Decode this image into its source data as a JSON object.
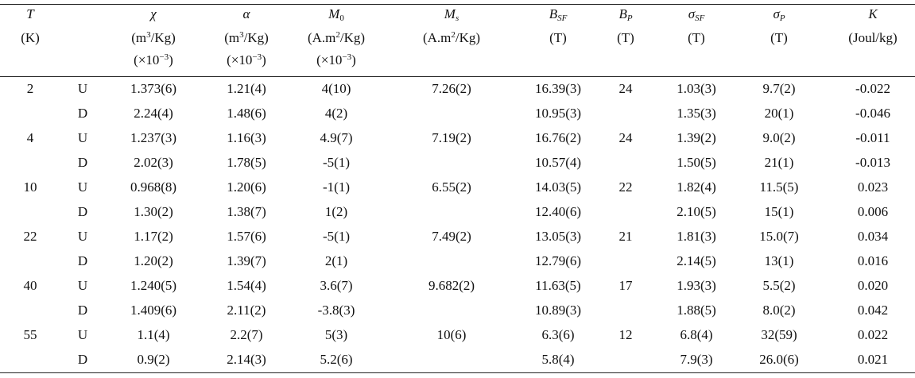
{
  "table": {
    "headers": [
      {
        "sym": "T",
        "unit": "(K)",
        "scale": ""
      },
      {
        "sym": "",
        "unit": "",
        "scale": ""
      },
      {
        "sym": "χ",
        "unit": "(m³/Kg)",
        "scale": "(×10⁻³)"
      },
      {
        "sym": "α",
        "unit": "(m³/Kg)",
        "scale": "(×10⁻³)"
      },
      {
        "sym": "M₀",
        "unit": "(A.m²/Kg)",
        "scale": "(×10⁻³)"
      },
      {
        "sym": "Mₛ",
        "unit": "(A.m²/Kg)",
        "scale": ""
      },
      {
        "sym": "B_SF",
        "unit": "(T)",
        "scale": ""
      },
      {
        "sym": "B_P",
        "unit": "(T)",
        "scale": ""
      },
      {
        "sym": "σ_SF",
        "unit": "(T)",
        "scale": ""
      },
      {
        "sym": "σ_P",
        "unit": "(T)",
        "scale": ""
      },
      {
        "sym": "K",
        "unit": "(Joul/kg)",
        "scale": ""
      }
    ],
    "rows": [
      [
        "2",
        "U",
        "1.373(6)",
        "1.21(4)",
        "4(10)",
        "7.26(2)",
        "16.39(3)",
        "24",
        "1.03(3)",
        "9.7(2)",
        "-0.022"
      ],
      [
        "",
        "D",
        "2.24(4)",
        "1.48(6)",
        "4(2)",
        "",
        "10.95(3)",
        "",
        "1.35(3)",
        "20(1)",
        "-0.046"
      ],
      [
        "4",
        "U",
        "1.237(3)",
        "1.16(3)",
        "4.9(7)",
        "7.19(2)",
        "16.76(2)",
        "24",
        "1.39(2)",
        "9.0(2)",
        "-0.011"
      ],
      [
        "",
        "D",
        "2.02(3)",
        "1.78(5)",
        "-5(1)",
        "",
        "10.57(4)",
        "",
        "1.50(5)",
        "21(1)",
        "-0.013"
      ],
      [
        "10",
        "U",
        "0.968(8)",
        "1.20(6)",
        "-1(1)",
        "6.55(2)",
        "14.03(5)",
        "22",
        "1.82(4)",
        "11.5(5)",
        "0.023"
      ],
      [
        "",
        "D",
        "1.30(2)",
        "1.38(7)",
        "1(2)",
        "",
        "12.40(6)",
        "",
        "2.10(5)",
        "15(1)",
        "0.006"
      ],
      [
        "22",
        "U",
        "1.17(2)",
        "1.57(6)",
        "-5(1)",
        "7.49(2)",
        "13.05(3)",
        "21",
        "1.81(3)",
        "15.0(7)",
        "0.034"
      ],
      [
        "",
        "D",
        "1.20(2)",
        "1.39(7)",
        "2(1)",
        "",
        "12.79(6)",
        "",
        "2.14(5)",
        "13(1)",
        "0.016"
      ],
      [
        "40",
        "U",
        "1.240(5)",
        "1.54(4)",
        "3.6(7)",
        "9.682(2)",
        "11.63(5)",
        "17",
        "1.93(3)",
        "5.5(2)",
        "0.020"
      ],
      [
        "",
        "D",
        "1.409(6)",
        "2.11(2)",
        "-3.8(3)",
        "",
        "10.89(3)",
        "",
        "1.88(5)",
        "8.0(2)",
        "0.042"
      ],
      [
        "55",
        "U",
        "1.1(4)",
        "2.2(7)",
        "5(3)",
        "10(6)",
        "6.3(6)",
        "12",
        "6.8(4)",
        "32(59)",
        "0.022"
      ],
      [
        "",
        "D",
        "0.9(2)",
        "2.14(3)",
        "5.2(6)",
        "",
        "5.8(4)",
        "",
        "7.9(3)",
        "26.0(6)",
        "0.021"
      ]
    ]
  }
}
